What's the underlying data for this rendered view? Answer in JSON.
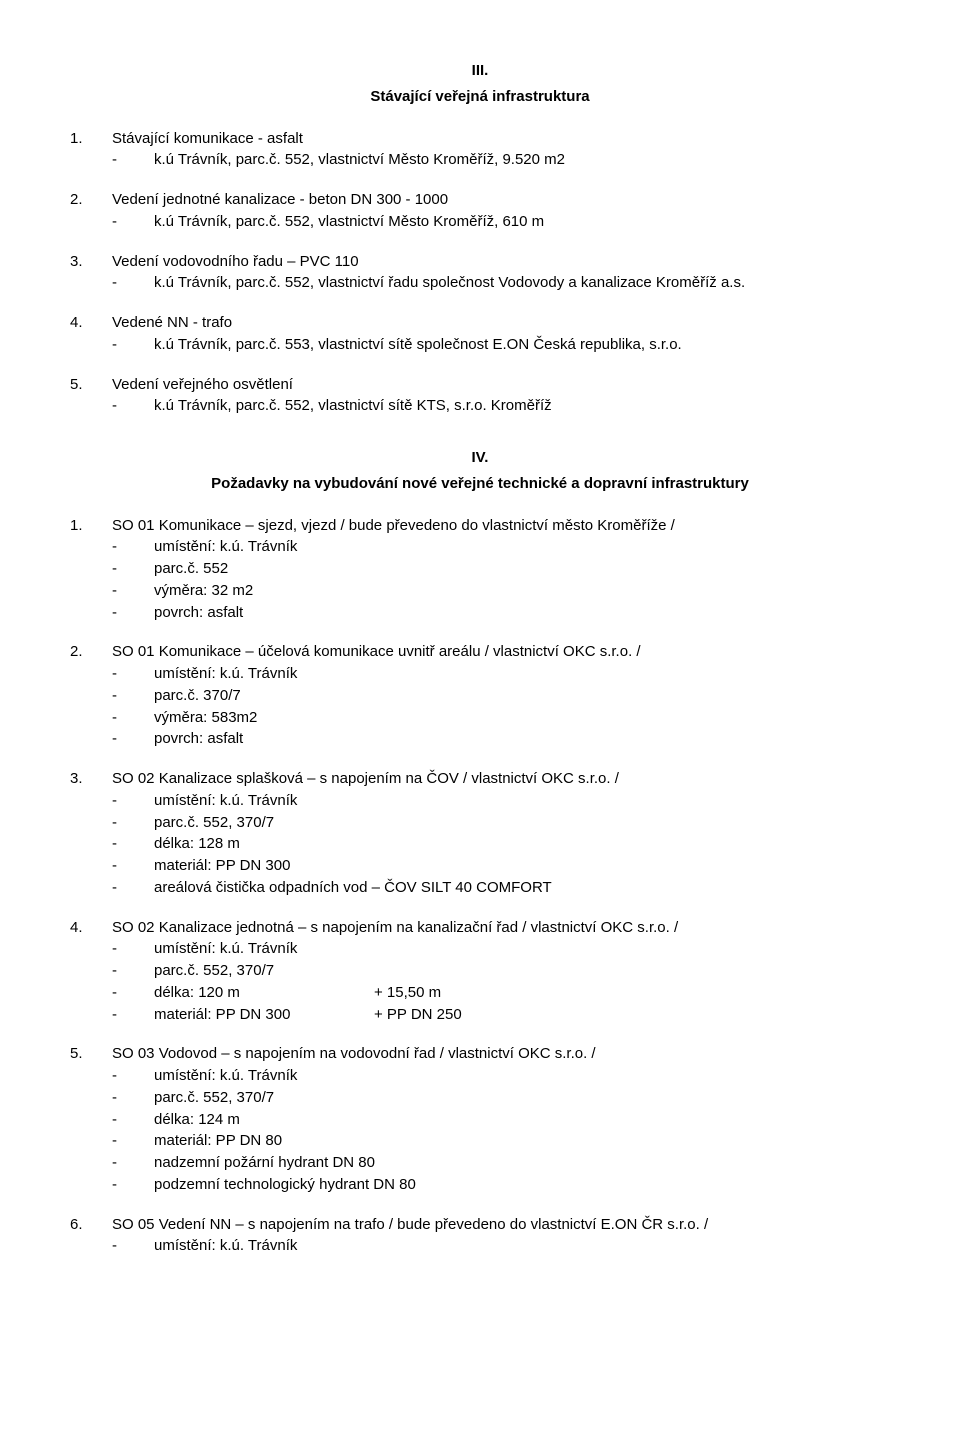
{
  "sectionIII": {
    "num": "III.",
    "title": "Stávající veřejná infrastruktura",
    "items": [
      {
        "num": "1.",
        "head": "Stávající komunikace - asfalt",
        "subs": [
          "k.ú Trávník, parc.č. 552, vlastnictví Město Kroměříž, 9.520 m2"
        ]
      },
      {
        "num": "2.",
        "head": "Vedení jednotné kanalizace - beton DN 300 - 1000",
        "subs": [
          "k.ú Trávník, parc.č. 552, vlastnictví Město Kroměříž, 610 m"
        ]
      },
      {
        "num": "3.",
        "head": "Vedení vodovodního řadu – PVC 110",
        "subs": [
          "k.ú Trávník, parc.č. 552, vlastnictví řadu společnost Vodovody a kanalizace Kroměříž a.s."
        ]
      },
      {
        "num": "4.",
        "head": "Vedené NN - trafo",
        "subs": [
          "k.ú Trávník, parc.č. 553, vlastnictví sítě společnost E.ON Česká republika, s.r.o."
        ]
      },
      {
        "num": "5.",
        "head": "Vedení veřejného osvětlení",
        "subs": [
          "k.ú Trávník, parc.č. 552, vlastnictví sítě KTS, s.r.o. Kroměříž"
        ]
      }
    ]
  },
  "sectionIV": {
    "num": "IV.",
    "title": "Požadavky na vybudování nové veřejné technické a dopravní infrastruktury",
    "items": [
      {
        "num": "1.",
        "head": "SO 01 Komunikace – sjezd, vjezd / bude převedeno do vlastnictví město Kroměříže /",
        "subs": [
          "umístění: k.ú. Trávník",
          "parc.č. 552",
          "výměra: 32 m2",
          "povrch: asfalt"
        ]
      },
      {
        "num": "2.",
        "head": "SO 01 Komunikace – účelová komunikace uvnitř areálu / vlastnictví OKC s.r.o. /",
        "subs": [
          "umístění: k.ú. Trávník",
          "parc.č. 370/7",
          "výměra: 583m2",
          "povrch: asfalt"
        ]
      },
      {
        "num": "3.",
        "head": "SO 02 Kanalizace splašková – s napojením na ČOV / vlastnictví OKC s.r.o. /",
        "subs": [
          "umístění: k.ú. Trávník",
          "parc.č. 552, 370/7",
          "délka: 128 m",
          "materiál: PP DN 300",
          "areálová čistička odpadních vod – ČOV SILT 40 COMFORT"
        ]
      },
      {
        "num": "4.",
        "head": "SO 02 Kanalizace jednotná – s napojením na kanalizační řad / vlastnictví OKC s.r.o. /",
        "subs": [
          "umístění: k.ú. Trávník",
          "parc.č. 552, 370/7"
        ],
        "twocol": [
          {
            "c1": "délka: 120 m",
            "c2": "+ 15,50 m"
          },
          {
            "c1": "materiál: PP DN 300",
            "c2": "+ PP DN 250"
          }
        ]
      },
      {
        "num": "5.",
        "head": "SO 03 Vodovod – s napojením na vodovodní řad / vlastnictví OKC s.r.o. /",
        "subs": [
          "umístění: k.ú. Trávník",
          "parc.č. 552, 370/7",
          "délka: 124 m",
          "materiál: PP DN 80",
          "nadzemní požární hydrant DN 80",
          "podzemní technologický hydrant DN 80"
        ]
      },
      {
        "num": "6.",
        "head": "SO 05 Vedení NN – s napojením na trafo / bude převedeno do vlastnictví E.ON ČR s.r.o. /",
        "subs": [
          "umístění: k.ú. Trávník"
        ]
      }
    ]
  }
}
